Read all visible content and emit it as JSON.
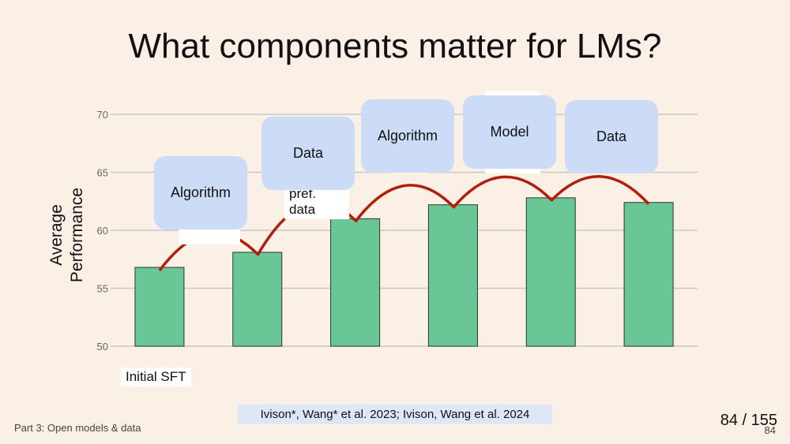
{
  "slide": {
    "title": "What components matter for LMs?",
    "citation": "Ivison*, Wang* et al. 2023; Ivison, Wang et al. 2024",
    "footer_left": "Part 3: Open models & data",
    "page_counter": "84 / 155",
    "footer_right": "84"
  },
  "chart_data": {
    "type": "bar",
    "ylabel": "Average Performance",
    "ylim": [
      50,
      70
    ],
    "yticks": [
      50,
      55,
      60,
      65,
      70
    ],
    "grid": true,
    "categories": [
      "Initial SFT",
      "",
      "",
      "",
      "",
      ""
    ],
    "values": [
      56.8,
      58.1,
      61.0,
      62.2,
      62.8,
      62.4
    ],
    "bar_color": "#68c795",
    "arc_color": "#b11e0a",
    "annotations": [
      "Algorithm",
      "Data",
      "Algorithm",
      "Model",
      "Data"
    ],
    "partial_labels": [
      "pref. data"
    ]
  }
}
